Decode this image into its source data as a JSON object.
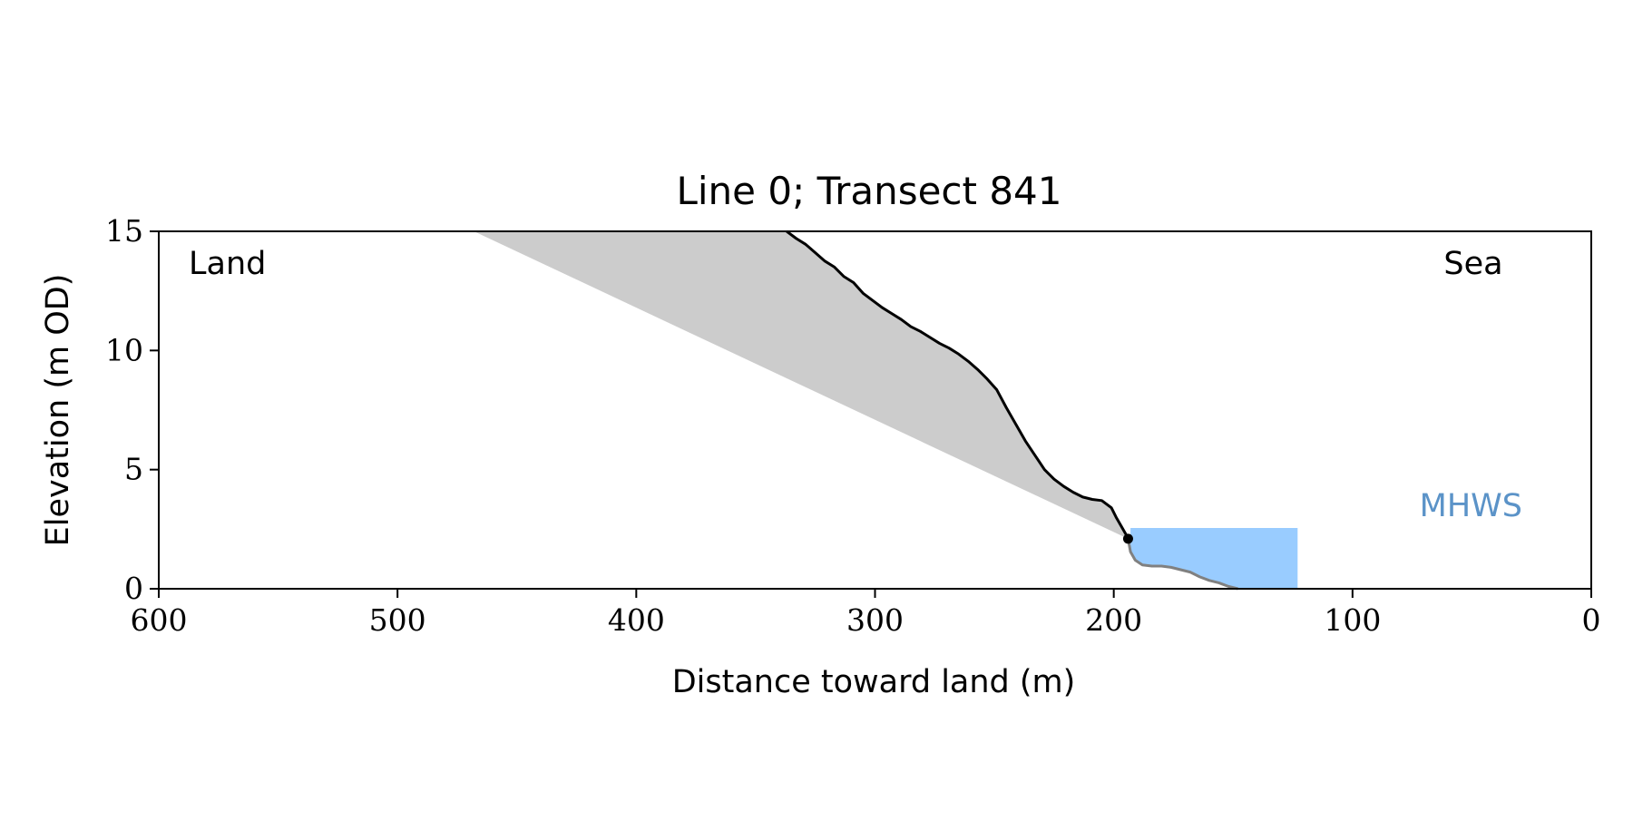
{
  "chart_data": {
    "type": "area",
    "title": "Line 0; Transect 841",
    "xlabel": "Distance toward land (m)",
    "ylabel": "Elevation (m OD)",
    "xlim": [
      600,
      0
    ],
    "ylim": [
      0,
      15
    ],
    "x_inverted": true,
    "grid": false,
    "xticks": [
      600,
      500,
      400,
      300,
      200,
      100,
      0
    ],
    "yticks": [
      0,
      5,
      10,
      15
    ],
    "xtick_labels": [
      "600",
      "500",
      "400",
      "300",
      "200",
      "100",
      "0"
    ],
    "ytick_labels": [
      "0",
      "5",
      "10",
      "15"
    ],
    "annotations": [
      {
        "text": "Land",
        "position": "top-left"
      },
      {
        "text": "Sea",
        "position": "top-right"
      },
      {
        "text": "MHWS",
        "position": "right",
        "color": "#5b93c8"
      }
    ],
    "colors": {
      "profile": "#000000",
      "submerged_profile": "#808080",
      "wedge_fill": "#cccccc",
      "water_fill": "#99ccff",
      "mhws_text": "#5b93c8"
    },
    "mhws_level": 2.55,
    "water_extent_x": [
      193,
      123
    ],
    "toe_point": {
      "x": 194,
      "y": 2.1
    },
    "wedge": {
      "upper_left": {
        "x": 468,
        "y": 15
      },
      "upper_right": {
        "x": 337,
        "y": 15
      },
      "lower_point": {
        "x": 194,
        "y": 2.1
      }
    },
    "series": [
      {
        "role": "cliff-profile",
        "x": [
          337,
          333,
          329,
          325,
          321,
          317,
          313,
          309,
          305,
          301,
          297,
          293,
          289,
          285,
          281,
          277,
          273,
          269,
          265,
          261,
          257,
          253,
          249,
          245,
          241,
          237,
          233,
          229,
          225,
          221,
          217,
          213,
          209,
          205,
          201,
          199,
          197,
          195,
          194
        ],
        "y": [
          15.0,
          14.7,
          14.45,
          14.1,
          13.75,
          13.5,
          13.1,
          12.85,
          12.4,
          12.1,
          11.8,
          11.55,
          11.3,
          11.0,
          10.8,
          10.55,
          10.3,
          10.1,
          9.85,
          9.55,
          9.2,
          8.8,
          8.35,
          7.6,
          6.9,
          6.2,
          5.6,
          5.0,
          4.6,
          4.3,
          4.05,
          3.85,
          3.75,
          3.7,
          3.4,
          3.0,
          2.65,
          2.3,
          2.1
        ]
      },
      {
        "role": "submerged-profile",
        "x": [
          194,
          193,
          191,
          188,
          184,
          180,
          176,
          172,
          168,
          164,
          160,
          156,
          152,
          148
        ],
        "y": [
          2.1,
          1.55,
          1.2,
          1.0,
          0.95,
          0.95,
          0.9,
          0.8,
          0.7,
          0.5,
          0.35,
          0.25,
          0.1,
          0.0
        ]
      }
    ]
  }
}
